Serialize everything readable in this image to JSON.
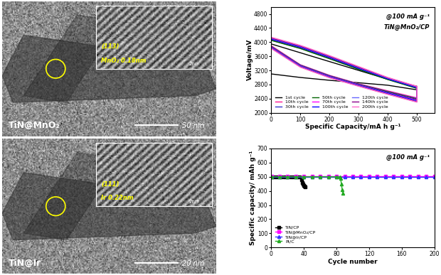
{
  "images": [
    {
      "label": "TiN@MnO₂",
      "scale_bar": "50 nm",
      "inset_plane": "(113)",
      "inset_text": "MnO₂ 0.18nm",
      "inset_scale": "2nm"
    },
    {
      "label": "TiN@Ir",
      "scale_bar": "20 nm",
      "inset_plane": "(111)",
      "inset_text": "Ir 0.22nm",
      "inset_scale": "2nm"
    }
  ],
  "chart_data": [
    {
      "type": "line",
      "annotations": [
        "@100 mA g⁻¹",
        "TiN@MnO₂/CP"
      ],
      "x_label": "Specific Capacity/mA h g⁻¹",
      "y_label": "Voltage/mV",
      "xlim": [
        0,
        560
      ],
      "xticks": [
        0,
        100,
        200,
        300,
        400,
        500
      ],
      "ylim": [
        2000,
        5000
      ],
      "yticks": [
        2000,
        2400,
        2800,
        3200,
        3600,
        4000,
        4400,
        4800
      ],
      "legend": "lower left",
      "series": [
        {
          "name": "1st cycle",
          "color": "#000000",
          "x": [
            0,
            100,
            200,
            300,
            400,
            500,
            500,
            400,
            300,
            200,
            100,
            0
          ],
          "values": [
            3950,
            3700,
            3450,
            3200,
            2950,
            2750,
            2650,
            2780,
            2850,
            2920,
            3000,
            3100
          ]
        },
        {
          "name": "10th cycle",
          "color": "#ff1493",
          "x": [
            0,
            100,
            200,
            300,
            400,
            500,
            500,
            400,
            300,
            200,
            100,
            0
          ],
          "values": [
            4080,
            3850,
            3560,
            3250,
            2960,
            2720,
            2420,
            2620,
            2820,
            3060,
            3360,
            3900
          ]
        },
        {
          "name": "30th cycle",
          "color": "#3333cc",
          "x": [
            0,
            100,
            200,
            300,
            400,
            500,
            500,
            400,
            300,
            200,
            100,
            0
          ],
          "values": [
            4060,
            3830,
            3540,
            3240,
            2950,
            2700,
            2400,
            2600,
            2810,
            3050,
            3350,
            3880
          ]
        },
        {
          "name": "50th cycle",
          "color": "#006400",
          "x": [
            0,
            100,
            200,
            300,
            400,
            500,
            500,
            400,
            300,
            200,
            100,
            0
          ],
          "values": [
            4050,
            3820,
            3530,
            3230,
            2940,
            2690,
            2380,
            2590,
            2800,
            3040,
            3340,
            3870
          ]
        },
        {
          "name": "70th cycle",
          "color": "#ff00ff",
          "x": [
            0,
            100,
            200,
            300,
            400,
            500,
            500,
            400,
            300,
            200,
            100,
            0
          ],
          "values": [
            4100,
            3870,
            3580,
            3270,
            2970,
            2720,
            2360,
            2570,
            2790,
            3030,
            3330,
            3860
          ]
        },
        {
          "name": "100th cycle",
          "color": "#0000ff",
          "x": [
            0,
            100,
            200,
            300,
            400,
            500,
            500,
            400,
            300,
            200,
            100,
            0
          ],
          "values": [
            4090,
            3860,
            3570,
            3260,
            2960,
            2710,
            2340,
            2560,
            2780,
            3020,
            3320,
            3850
          ]
        },
        {
          "name": "120th cycle",
          "color": "#6666ff",
          "x": [
            0,
            100,
            200,
            300,
            400,
            500,
            500,
            400,
            300,
            200,
            100,
            0
          ],
          "values": [
            4110,
            3880,
            3590,
            3280,
            2980,
            2730,
            2320,
            2540,
            2770,
            3010,
            3310,
            3840
          ]
        },
        {
          "name": "140th cycle",
          "color": "#8b008b",
          "x": [
            0,
            100,
            200,
            300,
            400,
            500,
            500,
            400,
            300,
            200,
            100,
            0
          ],
          "values": [
            4120,
            3890,
            3600,
            3290,
            2990,
            2740,
            2310,
            2530,
            2760,
            3000,
            3300,
            3830
          ]
        },
        {
          "name": "200th cycle",
          "color": "#ff66cc",
          "x": [
            0,
            100,
            200,
            300,
            400,
            500,
            500,
            400,
            300,
            200,
            100,
            0
          ],
          "values": [
            4140,
            3910,
            3620,
            3310,
            3000,
            2750,
            2300,
            2520,
            2750,
            2990,
            3290,
            3820
          ]
        }
      ]
    },
    {
      "type": "line",
      "annotations": [
        "@100 mA g⁻¹"
      ],
      "x_label": "Cycle number",
      "y_label": "Specific capacity/ mAh g⁻¹",
      "xlim": [
        0,
        200
      ],
      "xticks": [
        0,
        40,
        80,
        120,
        160,
        200
      ],
      "ylim": [
        0,
        700
      ],
      "yticks": [
        0,
        100,
        200,
        300,
        400,
        500,
        600,
        700
      ],
      "legend": "lower left",
      "series": [
        {
          "name": "TiN/CP",
          "color": "#000000",
          "marker": "square",
          "x": [
            1,
            4,
            8,
            12,
            16,
            20,
            24,
            28,
            32,
            35,
            37,
            38,
            39,
            40,
            41,
            42
          ],
          "values": [
            500,
            500,
            500,
            500,
            500,
            500,
            500,
            500,
            500,
            500,
            480,
            460,
            450,
            440,
            435,
            430
          ]
        },
        {
          "name": "TiN@MnO₂/CP",
          "color": "#ff00ff",
          "marker": "square",
          "x": [
            1,
            10,
            20,
            30,
            40,
            50,
            60,
            70,
            80,
            90,
            100,
            110,
            120,
            130,
            140,
            150,
            160,
            170,
            180,
            190,
            200
          ],
          "values": [
            505,
            505,
            505,
            505,
            505,
            505,
            505,
            505,
            505,
            505,
            505,
            505,
            505,
            505,
            505,
            505,
            505,
            505,
            505,
            505,
            505
          ]
        },
        {
          "name": "TiN@Ir/CP",
          "color": "#3333ff",
          "marker": "triangle",
          "x": [
            1,
            10,
            20,
            30,
            40,
            50,
            60,
            70,
            80,
            90,
            100,
            110,
            120,
            130,
            140,
            150,
            160,
            170,
            180,
            190,
            200
          ],
          "values": [
            498,
            498,
            498,
            498,
            498,
            498,
            498,
            498,
            498,
            498,
            498,
            498,
            498,
            498,
            498,
            498,
            498,
            498,
            498,
            498,
            498
          ]
        },
        {
          "name": "Pt/C",
          "color": "#22aa22",
          "marker": "triangle",
          "x": [
            1,
            10,
            20,
            30,
            40,
            50,
            60,
            70,
            80,
            84,
            85,
            86,
            87,
            88
          ],
          "values": [
            500,
            500,
            500,
            500,
            500,
            500,
            500,
            500,
            500,
            500,
            490,
            450,
            410,
            385
          ]
        }
      ]
    }
  ]
}
